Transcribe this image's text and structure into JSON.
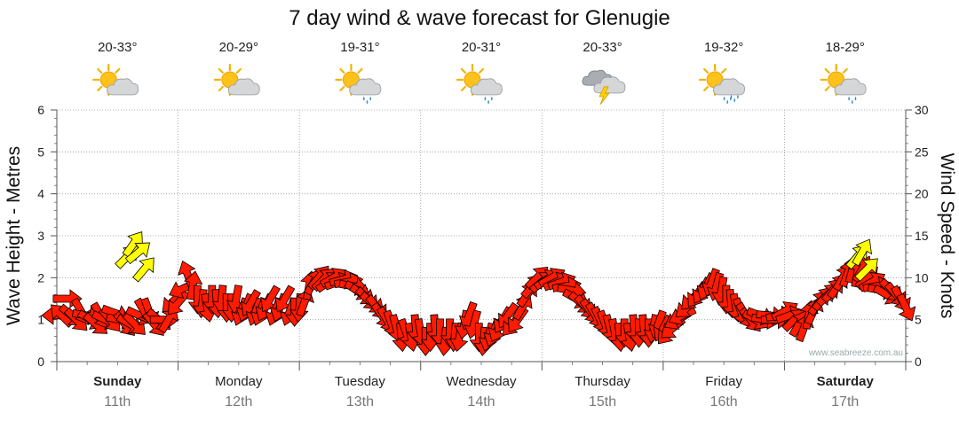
{
  "title": "7 day wind & wave forecast for Glenugie",
  "watermark": "www.seabreeze.com.au",
  "colors": {
    "wind_arrow": "#ff1a00",
    "wave_arrow": "#ffff00",
    "arrow_stroke": "#000000",
    "grid": "#999999",
    "axis": "#555555",
    "date_text": "#777777"
  },
  "days": [
    {
      "name": "Sunday",
      "date": "11th",
      "temp": "20-33°",
      "icon": "partly-cloudy-icon",
      "bold": true
    },
    {
      "name": "Monday",
      "date": "12th",
      "temp": "20-29°",
      "icon": "partly-cloudy-icon",
      "bold": false
    },
    {
      "name": "Tuesday",
      "date": "13th",
      "temp": "19-31°",
      "icon": "partly-cloudy-shower-icon",
      "bold": false
    },
    {
      "name": "Wednesday",
      "date": "14th",
      "temp": "20-31°",
      "icon": "partly-cloudy-shower-icon",
      "bold": false
    },
    {
      "name": "Thursday",
      "date": "15th",
      "temp": "20-33°",
      "icon": "thunderstorm-icon",
      "bold": false
    },
    {
      "name": "Friday",
      "date": "16th",
      "temp": "19-32°",
      "icon": "partly-cloudy-rain-icon",
      "bold": false
    },
    {
      "name": "Saturday",
      "date": "17th",
      "temp": "18-29°",
      "icon": "partly-cloudy-shower-icon",
      "bold": true
    }
  ],
  "chart_data": {
    "type": "scatter",
    "title": "7 day wind & wave forecast for Glenugie",
    "x_axis": {
      "unit": "day",
      "range": [
        0,
        7
      ],
      "ticks": [
        "Sunday 11th",
        "Monday 12th",
        "Tuesday 13th",
        "Wednesday 14th",
        "Thursday 15th",
        "Friday 16th",
        "Saturday 17th"
      ]
    },
    "y_left": {
      "label": "Wave Height - Metres",
      "ylim": [
        0,
        6
      ],
      "ticks": [
        0,
        1,
        2,
        3,
        4,
        5,
        6
      ]
    },
    "y_right": {
      "label": "Wind Speed - Knots",
      "ylim": [
        0,
        30
      ],
      "ticks": [
        0,
        5,
        10,
        15,
        20,
        25,
        30
      ]
    },
    "grid": true,
    "wind": {
      "name": "Wind Speed",
      "color": "red arrows",
      "points": [
        [
          0.0,
          5.5,
          270
        ],
        [
          0.04,
          5.5,
          315
        ],
        [
          0.08,
          7.5,
          90
        ],
        [
          0.12,
          5.5,
          130
        ],
        [
          0.16,
          5,
          135
        ],
        [
          0.2,
          6,
          150
        ],
        [
          0.24,
          5.5,
          100
        ],
        [
          0.28,
          5,
          120
        ],
        [
          0.32,
          4.5,
          130
        ],
        [
          0.36,
          5.5,
          150
        ],
        [
          0.4,
          5,
          115
        ],
        [
          0.44,
          5,
          140
        ],
        [
          0.48,
          5.8,
          110
        ],
        [
          0.52,
          5,
          100
        ],
        [
          0.56,
          4.5,
          140
        ],
        [
          0.6,
          4.5,
          120
        ],
        [
          0.64,
          4.5,
          135
        ],
        [
          0.68,
          5.5,
          115
        ],
        [
          0.72,
          6,
          150
        ],
        [
          0.76,
          6,
          160
        ],
        [
          0.8,
          4.5,
          140
        ],
        [
          0.84,
          5,
          130
        ],
        [
          0.88,
          5,
          90
        ],
        [
          0.92,
          5,
          30
        ],
        [
          0.96,
          7.2,
          225
        ],
        [
          1.0,
          7,
          220
        ],
        [
          1.04,
          8.7,
          245
        ],
        [
          1.08,
          10.3,
          340
        ],
        [
          1.12,
          9,
          10
        ],
        [
          1.16,
          7.5,
          180
        ],
        [
          1.2,
          7,
          185
        ],
        [
          1.24,
          6.5,
          170
        ],
        [
          1.28,
          7.5,
          180
        ],
        [
          1.32,
          7,
          175
        ],
        [
          1.36,
          7.5,
          185
        ],
        [
          1.4,
          6.5,
          180
        ],
        [
          1.44,
          6.5,
          180
        ],
        [
          1.48,
          7.5,
          190
        ],
        [
          1.52,
          6,
          200
        ],
        [
          1.56,
          6.5,
          200
        ],
        [
          1.6,
          7,
          210
        ],
        [
          1.64,
          6,
          200
        ],
        [
          1.68,
          6,
          200
        ],
        [
          1.72,
          6.5,
          205
        ],
        [
          1.76,
          7.5,
          210
        ],
        [
          1.8,
          6,
          200
        ],
        [
          1.84,
          6.5,
          200
        ],
        [
          1.88,
          7.5,
          210
        ],
        [
          1.92,
          6,
          200
        ],
        [
          1.96,
          6,
          180
        ],
        [
          2.0,
          6.5,
          185
        ],
        [
          2.04,
          7,
          20
        ],
        [
          2.08,
          9,
          10
        ],
        [
          2.12,
          9.5,
          30
        ],
        [
          2.16,
          10,
          40
        ],
        [
          2.2,
          9.8,
          45
        ],
        [
          2.24,
          9.5,
          55
        ],
        [
          2.28,
          10,
          60
        ],
        [
          2.32,
          9.5,
          70
        ],
        [
          2.36,
          9.8,
          75
        ],
        [
          2.4,
          9.5,
          80
        ],
        [
          2.44,
          9,
          100
        ],
        [
          2.48,
          8.5,
          120
        ],
        [
          2.52,
          8,
          125
        ],
        [
          2.56,
          7.5,
          135
        ],
        [
          2.6,
          7,
          130
        ],
        [
          2.64,
          6.5,
          140
        ],
        [
          2.68,
          5.5,
          145
        ],
        [
          2.72,
          5,
          150
        ],
        [
          2.76,
          4.5,
          160
        ],
        [
          2.8,
          4,
          165
        ],
        [
          2.84,
          3,
          175
        ],
        [
          2.88,
          3.5,
          160
        ],
        [
          2.92,
          3,
          170
        ],
        [
          2.96,
          4,
          175
        ],
        [
          3.0,
          3.5,
          170
        ],
        [
          3.04,
          2.5,
          180
        ],
        [
          3.08,
          3,
          180
        ],
        [
          3.12,
          4,
          175
        ],
        [
          3.16,
          3.5,
          180
        ],
        [
          3.2,
          2.5,
          185
        ],
        [
          3.24,
          3.5,
          180
        ],
        [
          3.28,
          3,
          185
        ],
        [
          3.32,
          3,
          190
        ],
        [
          3.36,
          4.5,
          190
        ],
        [
          3.4,
          5.5,
          200
        ],
        [
          3.44,
          4.5,
          195
        ],
        [
          3.48,
          3,
          180
        ],
        [
          3.52,
          2.5,
          185
        ],
        [
          3.56,
          3,
          195
        ],
        [
          3.6,
          3.5,
          200
        ],
        [
          3.64,
          4,
          205
        ],
        [
          3.68,
          5,
          210
        ],
        [
          3.72,
          5.5,
          215
        ],
        [
          3.76,
          4.5,
          220
        ],
        [
          3.8,
          5,
          215
        ],
        [
          3.84,
          6.5,
          30
        ],
        [
          3.88,
          8,
          35
        ],
        [
          3.92,
          9,
          40
        ],
        [
          3.96,
          10,
          45
        ],
        [
          4.0,
          9.5,
          50
        ],
        [
          4.04,
          9.8,
          55
        ],
        [
          4.08,
          10,
          60
        ],
        [
          4.12,
          9.5,
          65
        ],
        [
          4.16,
          9.5,
          70
        ],
        [
          4.2,
          9,
          80
        ],
        [
          4.24,
          8.5,
          100
        ],
        [
          4.28,
          7.5,
          120
        ],
        [
          4.32,
          7,
          130
        ],
        [
          4.36,
          6.5,
          140
        ],
        [
          4.4,
          6,
          145
        ],
        [
          4.44,
          5.5,
          150
        ],
        [
          4.48,
          5,
          155
        ],
        [
          4.52,
          4.5,
          160
        ],
        [
          4.56,
          4,
          165
        ],
        [
          4.6,
          3.5,
          170
        ],
        [
          4.64,
          3,
          175
        ],
        [
          4.68,
          3.5,
          180
        ],
        [
          4.72,
          3,
          170
        ],
        [
          4.76,
          4,
          175
        ],
        [
          4.8,
          3.5,
          180
        ],
        [
          4.84,
          4,
          175
        ],
        [
          4.88,
          3.5,
          180
        ],
        [
          4.92,
          4,
          190
        ],
        [
          4.96,
          4.5,
          200
        ],
        [
          5.0,
          4,
          210
        ],
        [
          5.04,
          3.5,
          220
        ],
        [
          5.08,
          4,
          230
        ],
        [
          5.12,
          5,
          240
        ],
        [
          5.16,
          5.5,
          245
        ],
        [
          5.2,
          6.5,
          230
        ],
        [
          5.24,
          7.5,
          225
        ],
        [
          5.28,
          8,
          215
        ],
        [
          5.32,
          8.5,
          210
        ],
        [
          5.36,
          9,
          205
        ],
        [
          5.4,
          9.5,
          200
        ],
        [
          5.44,
          9,
          195
        ],
        [
          5.48,
          8.5,
          190
        ],
        [
          5.52,
          7.5,
          180
        ],
        [
          5.56,
          7,
          175
        ],
        [
          5.6,
          6.5,
          170
        ],
        [
          5.64,
          6,
          160
        ],
        [
          5.68,
          5.5,
          150
        ],
        [
          5.72,
          5,
          140
        ],
        [
          5.76,
          5,
          120
        ],
        [
          5.8,
          5.5,
          110
        ],
        [
          5.84,
          5,
          100
        ],
        [
          5.88,
          5.5,
          95
        ],
        [
          5.92,
          5,
          90
        ],
        [
          5.96,
          5.5,
          80
        ],
        [
          6.0,
          6,
          60
        ],
        [
          6.04,
          5.5,
          70
        ],
        [
          6.08,
          5,
          45
        ],
        [
          6.12,
          4.5,
          30
        ],
        [
          6.16,
          4,
          20
        ],
        [
          6.2,
          5.5,
          10
        ],
        [
          6.24,
          6,
          25
        ],
        [
          6.28,
          7,
          35
        ],
        [
          6.32,
          7.5,
          40
        ],
        [
          6.36,
          8,
          45
        ],
        [
          6.4,
          8.5,
          40
        ],
        [
          6.44,
          9,
          35
        ],
        [
          6.48,
          10,
          30
        ],
        [
          6.52,
          10.5,
          20
        ],
        [
          6.56,
          11,
          15
        ],
        [
          6.6,
          10.5,
          10
        ],
        [
          6.64,
          11,
          30
        ],
        [
          6.68,
          10,
          45
        ],
        [
          6.72,
          9.5,
          60
        ],
        [
          6.76,
          9,
          80
        ],
        [
          6.8,
          8.5,
          100
        ],
        [
          6.84,
          8,
          120
        ],
        [
          6.88,
          8.5,
          135
        ],
        [
          6.92,
          8,
          140
        ],
        [
          6.96,
          7.5,
          150
        ],
        [
          7.0,
          6.5,
          155
        ]
      ]
    },
    "waves": {
      "name": "Wave Height",
      "color": "yellow arrows",
      "points": [
        [
          0.58,
          2.5,
          45
        ],
        [
          0.63,
          2.8,
          35
        ],
        [
          0.67,
          2.6,
          50
        ],
        [
          0.72,
          2.2,
          40
        ],
        [
          6.6,
          2.5,
          40
        ],
        [
          6.64,
          2.6,
          30
        ],
        [
          6.68,
          2.2,
          45
        ]
      ]
    }
  }
}
